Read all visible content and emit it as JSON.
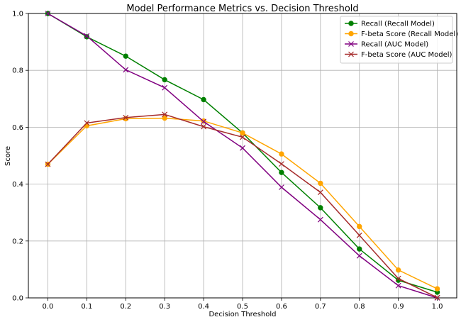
{
  "chart_data": {
    "type": "line",
    "title": "Model Performance Metrics vs. Decision Threshold",
    "xlabel": "Decision Threshold",
    "ylabel": "Score",
    "xlim": [
      -0.05,
      1.05
    ],
    "ylim": [
      0.0,
      1.0
    ],
    "xticks": [
      "0.0",
      "0.1",
      "0.2",
      "0.3",
      "0.4",
      "0.5",
      "0.6",
      "0.7",
      "0.8",
      "0.9",
      "1.0"
    ],
    "yticks": [
      "0.0",
      "0.2",
      "0.4",
      "0.6",
      "0.8",
      "1.0"
    ],
    "grid": true,
    "legend_position": "top-right",
    "x": [
      0.0,
      0.1,
      0.2,
      0.3,
      0.4,
      0.5,
      0.6,
      0.7,
      0.8,
      0.9,
      1.0
    ],
    "series": [
      {
        "name": "Recall (Recall Model)",
        "color": "#008000",
        "marker": "circle",
        "values": [
          1.0,
          0.918,
          0.85,
          0.767,
          0.697,
          0.58,
          0.441,
          0.317,
          0.172,
          0.062,
          0.02
        ]
      },
      {
        "name": "F-beta Score (Recall Model)",
        "color": "#FFA500",
        "marker": "circle",
        "values": [
          0.47,
          0.605,
          0.63,
          0.632,
          0.622,
          0.58,
          0.506,
          0.403,
          0.251,
          0.098,
          0.032
        ]
      },
      {
        "name": "Recall (AUC Model)",
        "color": "#800080",
        "marker": "x",
        "values": [
          1.0,
          0.921,
          0.802,
          0.739,
          0.62,
          0.527,
          0.389,
          0.275,
          0.148,
          0.043,
          0.0
        ]
      },
      {
        "name": "F-beta Score (AUC Model)",
        "color": "#A52A2A",
        "marker": "x",
        "values": [
          0.47,
          0.615,
          0.634,
          0.645,
          0.602,
          0.565,
          0.471,
          0.371,
          0.22,
          0.068,
          0.001
        ]
      }
    ]
  }
}
